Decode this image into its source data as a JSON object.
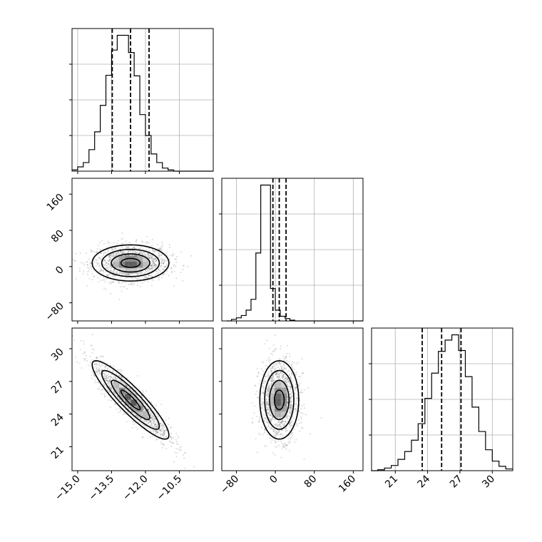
{
  "chart_data": [
    {
      "type": "histogram",
      "panel": "param-0-marginal",
      "bins": {
        "start": -15.25,
        "width": 0.25,
        "counts": [
          2,
          7,
          14,
          35,
          64,
          107,
          156,
          197,
          221,
          221,
          193,
          155,
          92,
          58,
          28,
          14,
          5,
          2,
          0,
          0,
          0,
          0,
          0,
          0,
          0
        ]
      },
      "quantiles": [
        -13.47,
        -12.66,
        -11.84
      ],
      "xlim": [
        -15.25,
        -9.0
      ],
      "ticks": [
        -15.0,
        -13.5,
        -12.0,
        -10.5
      ],
      "grid": true
    },
    {
      "type": "histogram",
      "panel": "param-1-marginal",
      "bins": {
        "start": -100,
        "width": 10,
        "counts": [
          0,
          2,
          4,
          7,
          14,
          28,
          88,
          176,
          176,
          42,
          14,
          6,
          3,
          1,
          0,
          0,
          0,
          0,
          0,
          0,
          0,
          0,
          0,
          0,
          0,
          0,
          0,
          0
        ]
      },
      "quantiles": [
        -5,
        8,
        22
      ],
      "xlim": [
        -110,
        180
      ],
      "ticks": [
        -80,
        0,
        80,
        160
      ],
      "grid": true
    },
    {
      "type": "histogram",
      "panel": "param-2-marginal",
      "bins": {
        "start": 18.75,
        "width": 0.625,
        "counts": [
          0,
          1,
          3,
          6,
          13,
          22,
          35,
          54,
          83,
          112,
          137,
          150,
          156,
          138,
          108,
          73,
          45,
          24,
          11,
          5,
          2
        ]
      },
      "quantiles": [
        23.5,
        25.3,
        27.1
      ],
      "xlim": [
        18.8,
        31.9
      ],
      "ticks": [
        21,
        24,
        27,
        30
      ],
      "grid": true
    },
    {
      "type": "scatter-density",
      "panel": "param-1-vs-param-0",
      "x_param": 0,
      "y_param": 1,
      "x_center": -12.66,
      "x_sd": 0.85,
      "y_center": 8,
      "y_sd": 20,
      "correlation": 0.0,
      "contour_levels_sigma": [
        0.5,
        1.0,
        1.5,
        2.0
      ],
      "xlim": [
        -15.25,
        -9.0
      ],
      "ylim": [
        -120,
        195
      ],
      "xticks": [
        -15.0,
        -13.5,
        -12.0,
        -10.5
      ],
      "yticks": [
        -80,
        0,
        80,
        160
      ]
    },
    {
      "type": "scatter-density",
      "panel": "param-2-vs-param-0",
      "x_param": 0,
      "y_param": 2,
      "x_center": -12.66,
      "x_sd": 0.85,
      "y_center": 25.3,
      "y_sd": 1.8,
      "correlation": -0.9,
      "contour_levels_sigma": [
        0.5,
        1.0,
        1.5,
        2.0
      ],
      "xlim": [
        -15.25,
        -9.0
      ],
      "ylim": [
        18.8,
        31.9
      ],
      "xticks": [
        -15.0,
        -13.5,
        -12.0,
        -10.5
      ],
      "yticks": [
        21,
        24,
        27,
        30
      ]
    },
    {
      "type": "scatter-density",
      "panel": "param-2-vs-param-1",
      "x_param": 1,
      "y_param": 2,
      "x_center": 8,
      "x_sd": 20,
      "y_center": 25.3,
      "y_sd": 1.8,
      "correlation": 0.0,
      "contour_levels_sigma": [
        0.5,
        1.0,
        1.5,
        2.0
      ],
      "xlim": [
        -110,
        180
      ],
      "ylim": [
        18.8,
        31.9
      ],
      "xticks": [
        -80,
        0,
        80,
        160
      ],
      "yticks": [
        21,
        24,
        27,
        30
      ]
    }
  ],
  "axis_tick_labels": {
    "param0": [
      "−15.0",
      "−13.5",
      "−12.0",
      "−10.5"
    ],
    "param1": [
      "−80",
      "0",
      "80",
      "160"
    ],
    "param2": [
      "21",
      "24",
      "27",
      "30"
    ]
  }
}
